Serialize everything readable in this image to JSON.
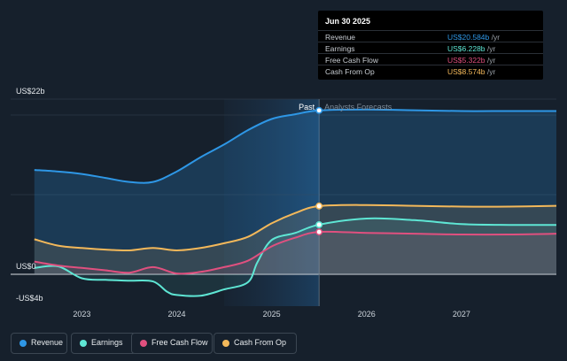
{
  "tooltip": {
    "date": "Jun 30 2025",
    "rows": [
      {
        "label": "Revenue",
        "value": "US$20.584b",
        "unit": " /yr",
        "color": "#2e97e6"
      },
      {
        "label": "Earnings",
        "value": "US$6.228b",
        "unit": " /yr",
        "color": "#5ee6d4"
      },
      {
        "label": "Free Cash Flow",
        "value": "US$5.322b",
        "unit": " /yr",
        "color": "#e0507f"
      },
      {
        "label": "Cash From Op",
        "value": "US$8.574b",
        "unit": " /yr",
        "color": "#f3b85a"
      }
    ]
  },
  "legend": [
    {
      "label": "Revenue",
      "color": "#2e97e6"
    },
    {
      "label": "Earnings",
      "color": "#5ee6d4"
    },
    {
      "label": "Free Cash Flow",
      "color": "#e0507f"
    },
    {
      "label": "Cash From Op",
      "color": "#f3b85a"
    }
  ],
  "chart_data": {
    "type": "line",
    "title": "",
    "xlabel": "",
    "ylabel": "",
    "ylim": [
      -4,
      22
    ],
    "y_tick_labels": [
      "US$22b",
      "US$0",
      "-US$4b"
    ],
    "x_tick_labels": [
      "2023",
      "2024",
      "2025",
      "2026",
      "2027"
    ],
    "x_ticks": [
      2023.0,
      2024.0,
      2025.0,
      2026.0,
      2027.0
    ],
    "xlim": [
      2022.25,
      2028.0
    ],
    "past_label": "Past",
    "forecast_label": "Analysts Forecasts",
    "past_end": 2025.5,
    "series": [
      {
        "name": "Revenue",
        "color": "#2e97e6",
        "x": [
          2022.5,
          2022.75,
          2023.0,
          2023.25,
          2023.5,
          2023.75,
          2024.0,
          2024.25,
          2024.5,
          2024.75,
          2025.0,
          2025.25,
          2025.5,
          2026.0,
          2026.5,
          2027.0,
          2027.5,
          2028.0
        ],
        "y": [
          13.1,
          12.9,
          12.6,
          12.1,
          11.6,
          11.6,
          12.9,
          14.7,
          16.3,
          18.1,
          19.5,
          20.1,
          20.58,
          20.7,
          20.6,
          20.5,
          20.5,
          20.5
        ]
      },
      {
        "name": "Earnings",
        "color": "#5ee6d4",
        "x": [
          2022.5,
          2022.75,
          2023.0,
          2023.25,
          2023.5,
          2023.75,
          2023.9,
          2024.0,
          2024.25,
          2024.5,
          2024.75,
          2024.85,
          2025.0,
          2025.25,
          2025.5,
          2026.0,
          2026.5,
          2027.0,
          2027.5,
          2028.0
        ],
        "y": [
          0.8,
          1.0,
          -0.5,
          -0.7,
          -0.8,
          -0.9,
          -2.2,
          -2.6,
          -2.7,
          -1.9,
          -1.0,
          1.5,
          4.3,
          5.2,
          6.23,
          7.0,
          6.8,
          6.3,
          6.2,
          6.2
        ]
      },
      {
        "name": "Free Cash Flow",
        "color": "#e0507f",
        "x": [
          2022.5,
          2022.75,
          2023.0,
          2023.25,
          2023.5,
          2023.75,
          2024.0,
          2024.25,
          2024.5,
          2024.75,
          2025.0,
          2025.25,
          2025.5,
          2026.0,
          2026.5,
          2027.0,
          2027.5,
          2028.0
        ],
        "y": [
          1.6,
          1.1,
          0.8,
          0.5,
          0.2,
          0.9,
          0.1,
          0.3,
          0.9,
          1.7,
          3.5,
          4.6,
          5.32,
          5.2,
          5.1,
          5.0,
          5.0,
          5.1
        ]
      },
      {
        "name": "Cash From Op",
        "color": "#f3b85a",
        "x": [
          2022.5,
          2022.75,
          2023.0,
          2023.25,
          2023.5,
          2023.75,
          2024.0,
          2024.25,
          2024.5,
          2024.75,
          2025.0,
          2025.25,
          2025.5,
          2026.0,
          2026.5,
          2027.0,
          2027.5,
          2028.0
        ],
        "y": [
          4.4,
          3.6,
          3.3,
          3.1,
          3.0,
          3.3,
          3.0,
          3.3,
          3.9,
          4.7,
          6.4,
          7.7,
          8.57,
          8.7,
          8.6,
          8.5,
          8.5,
          8.6
        ]
      }
    ]
  }
}
